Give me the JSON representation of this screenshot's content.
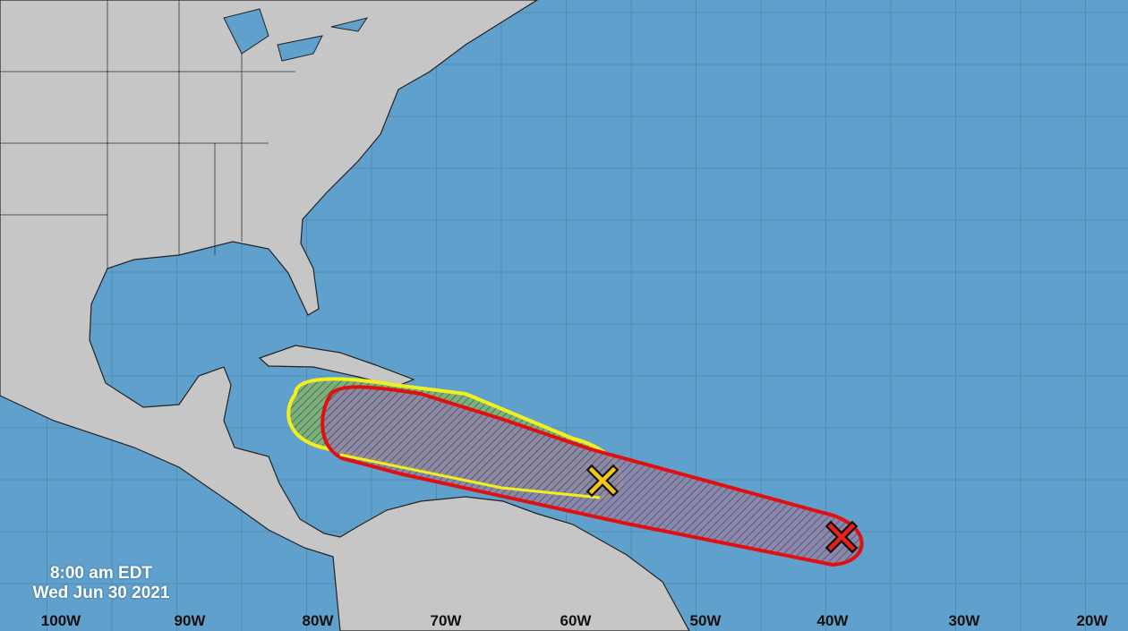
{
  "map": {
    "timestamp": {
      "time": "8:00 am EDT",
      "date": "Wed Jun 30 2021"
    },
    "longitude_labels": [
      "100W",
      "90W",
      "80W",
      "70W",
      "60W",
      "50W",
      "40W",
      "30W",
      "20W"
    ],
    "colors": {
      "ocean": "#60a0cc",
      "land": "#c6c6c6",
      "low_chance_area": "#f0f020",
      "high_chance_area": "#e01010",
      "low_chance_marker": "#f5c518",
      "high_chance_marker": "#e8201a"
    },
    "outlook_areas": [
      {
        "marker": "yellow-x",
        "marker_icon": "x-icon"
      },
      {
        "marker": "red-x",
        "marker_icon": "x-icon"
      }
    ]
  }
}
